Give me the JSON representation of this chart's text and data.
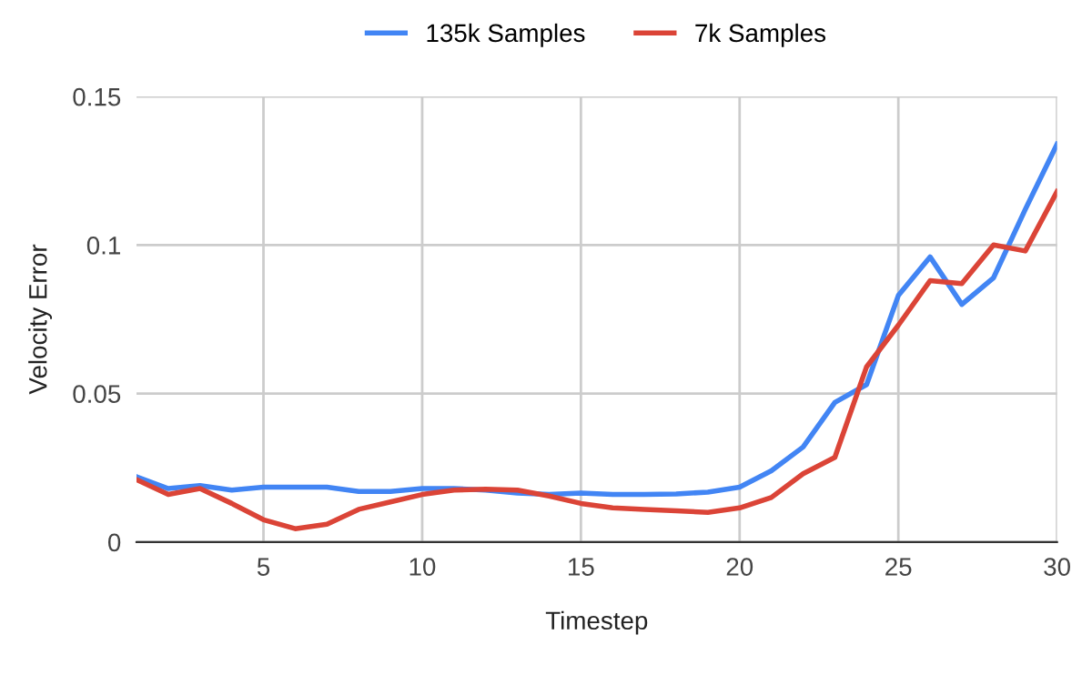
{
  "chart_data": {
    "type": "line",
    "xlabel": "Timestep",
    "ylabel": "Velocity Error",
    "x": [
      1,
      2,
      3,
      4,
      5,
      6,
      7,
      8,
      9,
      10,
      11,
      12,
      13,
      14,
      15,
      16,
      17,
      18,
      19,
      20,
      21,
      22,
      23,
      24,
      25,
      26,
      27,
      28,
      29,
      30
    ],
    "series": [
      {
        "name": "135k Samples",
        "color": "#4285f4",
        "values": [
          0.022,
          0.018,
          0.019,
          0.0175,
          0.0185,
          0.0185,
          0.0185,
          0.017,
          0.017,
          0.018,
          0.018,
          0.0175,
          0.0165,
          0.016,
          0.0165,
          0.016,
          0.016,
          0.0162,
          0.0168,
          0.0185,
          0.024,
          0.032,
          0.047,
          0.053,
          0.083,
          0.096,
          0.08,
          0.089,
          0.112,
          0.134
        ]
      },
      {
        "name": "7k Samples",
        "color": "#db4437",
        "values": [
          0.021,
          0.016,
          0.018,
          0.013,
          0.0075,
          0.0045,
          0.006,
          0.011,
          0.0135,
          0.016,
          0.0175,
          0.0178,
          0.0175,
          0.0155,
          0.013,
          0.0115,
          0.011,
          0.0105,
          0.01,
          0.0115,
          0.015,
          0.023,
          0.0285,
          0.059,
          0.073,
          0.088,
          0.087,
          0.1,
          0.098,
          0.118
        ]
      }
    ],
    "xlim": [
      1,
      30
    ],
    "xticks": [
      5,
      10,
      15,
      20,
      25,
      30
    ],
    "ylim": [
      0,
      0.15
    ],
    "yticks": [
      0,
      0.05,
      0.1,
      0.15
    ],
    "grid": true,
    "legend": "top",
    "marker": "none",
    "line_style": "solid"
  }
}
